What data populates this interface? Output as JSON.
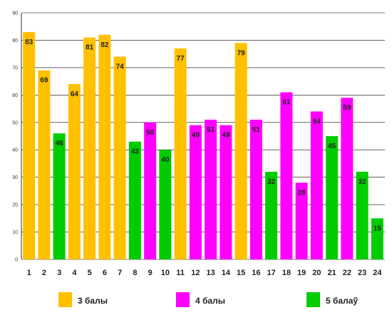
{
  "chart_data": {
    "type": "bar",
    "categories": [
      "1",
      "2",
      "3",
      "4",
      "5",
      "6",
      "7",
      "8",
      "9",
      "10",
      "11",
      "12",
      "13",
      "14",
      "15",
      "16",
      "17",
      "18",
      "19",
      "20",
      "21",
      "22",
      "23",
      "24"
    ],
    "values": [
      83,
      69,
      46,
      64,
      81,
      82,
      74,
      43,
      50,
      40,
      77,
      49,
      51,
      49,
      79,
      51,
      32,
      61,
      28,
      54,
      45,
      59,
      32,
      15
    ],
    "groups": [
      "3 балы",
      "3 балы",
      "5 балаў",
      "3 балы",
      "3 балы",
      "3 балы",
      "3 балы",
      "5 балаў",
      "4 балы",
      "5 балаў",
      "3 балы",
      "4 балы",
      "4 балы",
      "4 балы",
      "3 балы",
      "4 балы",
      "5 балаў",
      "4 балы",
      "4 балы",
      "4 балы",
      "5 балаў",
      "4 балы",
      "5 балаў",
      "5 балаў"
    ],
    "series": [
      {
        "name": "3 балы",
        "color": "#FFC000"
      },
      {
        "name": "4 балы",
        "color": "#FF00FF"
      },
      {
        "name": "5 балаў",
        "color": "#00CC00"
      }
    ],
    "yticks": [
      0,
      10,
      20,
      30,
      40,
      50,
      60,
      70,
      80,
      90
    ],
    "ylim": [
      0,
      90
    ],
    "grid": true,
    "legend_position": "bottom",
    "title": "",
    "xlabel": "",
    "ylabel": ""
  }
}
